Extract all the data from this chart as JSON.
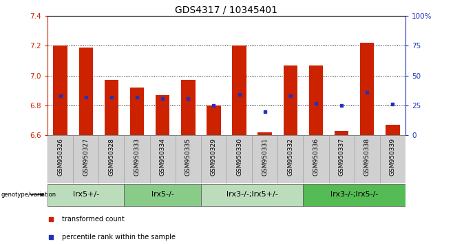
{
  "title": "GDS4317 / 10345401",
  "samples": [
    "GSM950326",
    "GSM950327",
    "GSM950328",
    "GSM950333",
    "GSM950334",
    "GSM950335",
    "GSM950329",
    "GSM950330",
    "GSM950331",
    "GSM950332",
    "GSM950336",
    "GSM950337",
    "GSM950338",
    "GSM950339"
  ],
  "bar_tops": [
    7.2,
    7.19,
    6.97,
    6.92,
    6.87,
    6.97,
    6.8,
    7.2,
    6.62,
    7.07,
    7.07,
    6.63,
    7.22,
    6.67
  ],
  "bar_bottoms": [
    6.6,
    6.6,
    6.6,
    6.6,
    6.6,
    6.6,
    6.6,
    6.6,
    6.6,
    6.6,
    6.6,
    6.6,
    6.6,
    6.6
  ],
  "percentile_values": [
    33,
    32,
    32,
    32,
    31,
    31,
    25,
    34,
    20,
    33,
    27,
    25,
    36,
    26
  ],
  "ylim_left": [
    6.6,
    7.4
  ],
  "ylim_right": [
    0,
    100
  ],
  "yticks_left": [
    6.6,
    6.8,
    7.0,
    7.2,
    7.4
  ],
  "yticks_right": [
    0,
    25,
    50,
    75,
    100
  ],
  "ytick_labels_right": [
    "0",
    "25",
    "50",
    "75",
    "100%"
  ],
  "bar_color": "#cc2200",
  "blue_color": "#2233bb",
  "groups": [
    {
      "label": "lrx5+/-",
      "start": 0,
      "end": 2,
      "color": "#bbddbb"
    },
    {
      "label": "lrx5-/-",
      "start": 3,
      "end": 5,
      "color": "#88cc88"
    },
    {
      "label": "lrx3-/-;lrx5+/-",
      "start": 6,
      "end": 9,
      "color": "#bbddbb"
    },
    {
      "label": "lrx3-/-;lrx5-/-",
      "start": 10,
      "end": 13,
      "color": "#55bb55"
    }
  ],
  "background_color": "#ffffff",
  "title_fontsize": 10,
  "tick_fontsize": 7.5,
  "sample_fontsize": 6.5,
  "group_fontsize": 8
}
